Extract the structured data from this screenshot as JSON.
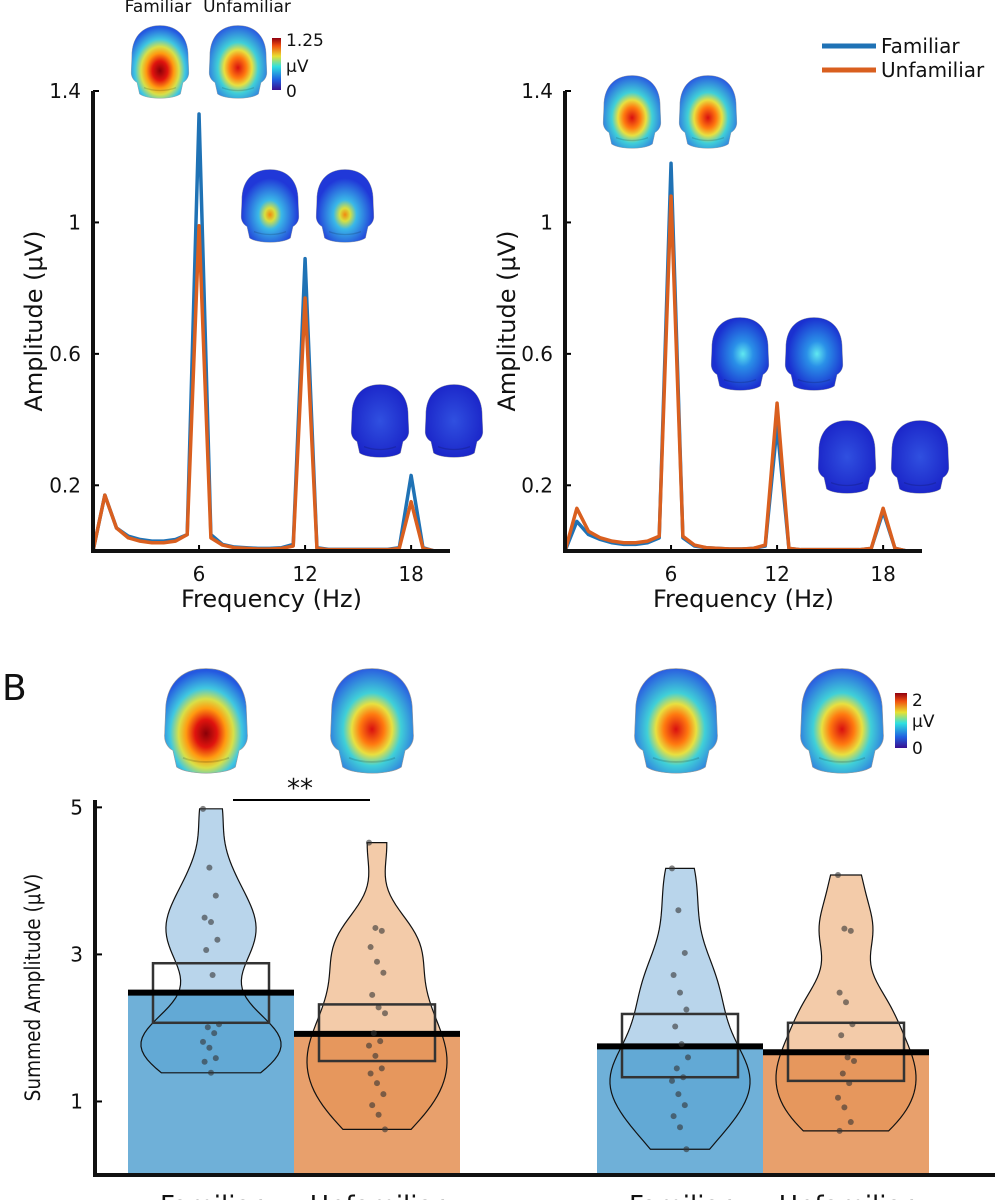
{
  "chart_data": [
    {
      "type": "line",
      "topomap_labels": [
        "Familiar",
        "Unfamiliar"
      ],
      "colorbar": {
        "max": 1.25,
        "unit": "μV",
        "min": 0
      },
      "xlabel": "Frequency (Hz)",
      "ylabel": "Amplitude (μV)",
      "x": [
        0,
        0.67,
        1.33,
        2,
        2.67,
        3.33,
        4,
        4.67,
        5.33,
        6,
        6.67,
        7.33,
        8,
        8.67,
        9.33,
        10,
        10.67,
        11.33,
        12,
        12.67,
        13.33,
        14,
        14.67,
        15.33,
        16,
        16.67,
        17.33,
        18,
        18.67,
        19.33
      ],
      "series": [
        {
          "name": "Familiar",
          "color": "#1f72b5",
          "values": [
            0,
            0.17,
            0.07,
            0.045,
            0.035,
            0.03,
            0.03,
            0.035,
            0.05,
            1.33,
            0.05,
            0.02,
            0.012,
            0.01,
            0.008,
            0.008,
            0.01,
            0.02,
            0.89,
            0.01,
            0.005,
            0.005,
            0.005,
            0.005,
            0.005,
            0.005,
            0.01,
            0.23,
            0.01,
            0
          ]
        },
        {
          "name": "Unfamiliar",
          "color": "#d95f1f",
          "values": [
            0,
            0.17,
            0.07,
            0.04,
            0.03,
            0.025,
            0.025,
            0.03,
            0.05,
            0.99,
            0.04,
            0.018,
            0.01,
            0.008,
            0.006,
            0.006,
            0.008,
            0.015,
            0.77,
            0.008,
            0.004,
            0.004,
            0.004,
            0.004,
            0.004,
            0.004,
            0.008,
            0.15,
            0.008,
            0
          ]
        }
      ],
      "xlim": [
        0,
        20.2
      ],
      "ylim": [
        0,
        1.4
      ],
      "xticks": [
        6,
        12,
        18
      ],
      "yticks": [
        0.2,
        0.6,
        1,
        1.4
      ]
    },
    {
      "type": "line",
      "xlabel": "Frequency (Hz)",
      "ylabel": "Amplitude (μV)",
      "legend": "upper right",
      "x": [
        0,
        0.67,
        1.33,
        2,
        2.67,
        3.33,
        4,
        4.67,
        5.33,
        6,
        6.67,
        7.33,
        8,
        8.67,
        9.33,
        10,
        10.67,
        11.33,
        12,
        12.67,
        13.33,
        14,
        14.67,
        15.33,
        16,
        16.67,
        17.33,
        18,
        18.67,
        19.33
      ],
      "series": [
        {
          "name": "Familiar",
          "color": "#1f72b5",
          "values": [
            0,
            0.09,
            0.05,
            0.035,
            0.025,
            0.02,
            0.02,
            0.025,
            0.04,
            1.18,
            0.04,
            0.015,
            0.01,
            0.008,
            0.006,
            0.006,
            0.008,
            0.015,
            0.38,
            0.008,
            0.004,
            0.004,
            0.004,
            0.004,
            0.004,
            0.004,
            0.008,
            0.12,
            0.008,
            0
          ]
        },
        {
          "name": "Unfamiliar",
          "color": "#d95f1f",
          "values": [
            0,
            0.13,
            0.06,
            0.04,
            0.03,
            0.025,
            0.025,
            0.03,
            0.045,
            1.08,
            0.045,
            0.018,
            0.01,
            0.008,
            0.006,
            0.006,
            0.008,
            0.018,
            0.45,
            0.008,
            0.004,
            0.004,
            0.004,
            0.004,
            0.004,
            0.004,
            0.008,
            0.13,
            0.008,
            0
          ]
        }
      ],
      "xlim": [
        0,
        20.2
      ],
      "ylim": [
        0,
        1.4
      ],
      "xticks": [
        6,
        12,
        18
      ],
      "yticks": [
        0.2,
        0.6,
        1,
        1.4
      ]
    },
    {
      "type": "violin",
      "panel_label": "B",
      "annotation": "**",
      "colorbar": {
        "max": 2,
        "unit": "μV",
        "min": 0
      },
      "ylabel": "Summed Amplitude (μV)",
      "categories": [
        "Familiar",
        "Unfamiliar",
        "Familiar",
        "Unfamiliar"
      ],
      "colors": [
        "#4f9fd0",
        "#e38b4c",
        "#4f9fd0",
        "#e38b4c"
      ],
      "violin_colors": [
        "#b9d5eb",
        "#f3cba9",
        "#b9d5eb",
        "#f3cba9"
      ],
      "values": [
        2.48,
        1.92,
        1.75,
        1.67
      ],
      "box_low": [
        2.07,
        1.55,
        1.33,
        1.28
      ],
      "box_high": [
        2.88,
        2.32,
        2.19,
        2.07
      ],
      "points": [
        [
          4.98,
          4.18,
          3.8,
          3.5,
          3.44,
          3.2,
          3.06,
          2.72,
          2.05,
          2.01,
          1.93,
          1.81,
          1.73,
          1.59,
          1.54,
          1.39
        ],
        [
          4.52,
          3.36,
          3.32,
          3.1,
          2.9,
          2.75,
          2.45,
          2.28,
          2.2,
          1.93,
          1.82,
          1.76,
          1.62,
          1.45,
          1.38,
          1.25,
          1.1,
          0.95,
          0.82,
          0.62
        ],
        [
          4.17,
          3.6,
          3.02,
          2.72,
          2.48,
          2.25,
          2.02,
          1.78,
          1.6,
          1.45,
          1.33,
          1.28,
          1.1,
          0.95,
          0.8,
          0.65,
          0.35
        ],
        [
          4.08,
          3.35,
          3.32,
          2.48,
          2.35,
          2.05,
          1.9,
          1.6,
          1.55,
          1.38,
          1.25,
          1.05,
          0.92,
          0.72,
          0.6
        ]
      ],
      "ylim": [
        0,
        5.1
      ],
      "yticks": [
        1,
        3,
        5
      ]
    }
  ]
}
